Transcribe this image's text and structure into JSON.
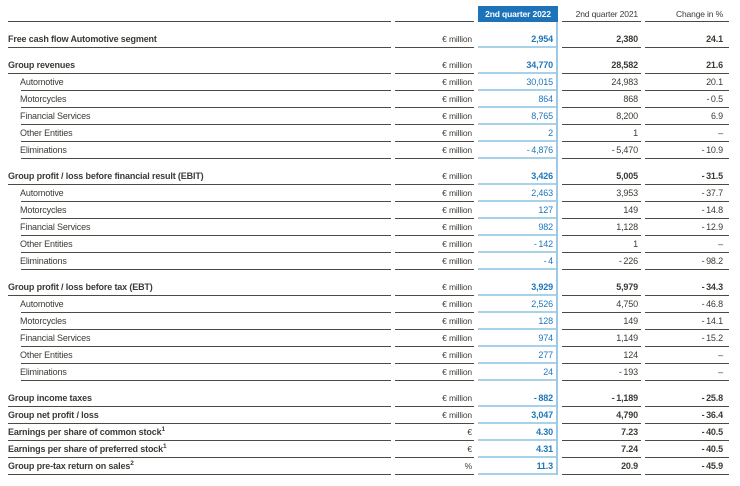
{
  "document": {
    "type": "quarterly-report-table"
  },
  "colors": {
    "header_box_bg": "#1d73b9",
    "header_box_text": "#ffffff",
    "value_2022_text": "#2077bb",
    "column_2022_underline": "#a8d1ea",
    "column_2022_divider": "#9ccae6",
    "row_rule": "#4b4b46",
    "body_text": "#3a3a36"
  },
  "table": {
    "columns": {
      "q2_2022": "2nd quarter 2022",
      "q2_2021": "2nd quarter 2021",
      "change": "Change in %"
    },
    "sections": [
      {
        "rows": [
          {
            "label": "Free cash flow Automotive segment",
            "bold": true,
            "unit": "€ million",
            "q2022": "2,954",
            "q2021": "2,380",
            "change": "24.1"
          }
        ]
      },
      {
        "rows": [
          {
            "label": "Group revenues",
            "bold": true,
            "unit": "€ million",
            "q2022": "34,770",
            "q2021": "28,582",
            "change": "21.6"
          },
          {
            "label": "Automotive",
            "indent": true,
            "unit": "€ million",
            "q2022": "30,015",
            "q2021": "24,983",
            "change": "20.1"
          },
          {
            "label": "Motorcycles",
            "indent": true,
            "unit": "€ million",
            "q2022": "864",
            "q2021": "868",
            "change": "- 0.5"
          },
          {
            "label": "Financial Services",
            "indent": true,
            "unit": "€ million",
            "q2022": "8,765",
            "q2021": "8,200",
            "change": "6.9"
          },
          {
            "label": "Other Entities",
            "indent": true,
            "unit": "€ million",
            "q2022": "2",
            "q2021": "1",
            "change": "–"
          },
          {
            "label": "Eliminations",
            "indent": true,
            "unit": "€ million",
            "q2022": "- 4,876",
            "q2021": "- 5,470",
            "change": "- 10.9"
          }
        ]
      },
      {
        "rows": [
          {
            "label": "Group profit / loss before financial result (EBIT)",
            "bold": true,
            "unit": "€ million",
            "q2022": "3,426",
            "q2021": "5,005",
            "change": "- 31.5"
          },
          {
            "label": "Automotive",
            "indent": true,
            "unit": "€ million",
            "q2022": "2,463",
            "q2021": "3,953",
            "change": "- 37.7"
          },
          {
            "label": "Motorcycles",
            "indent": true,
            "unit": "€ million",
            "q2022": "127",
            "q2021": "149",
            "change": "- 14.8"
          },
          {
            "label": "Financial Services",
            "indent": true,
            "unit": "€ million",
            "q2022": "982",
            "q2021": "1,128",
            "change": "- 12.9"
          },
          {
            "label": "Other Entities",
            "indent": true,
            "unit": "€ million",
            "q2022": "- 142",
            "q2021": "1",
            "change": "–"
          },
          {
            "label": "Eliminations",
            "indent": true,
            "unit": "€ million",
            "q2022": "- 4",
            "q2021": "- 226",
            "change": "- 98.2"
          }
        ]
      },
      {
        "rows": [
          {
            "label": "Group profit / loss before tax (EBT)",
            "bold": true,
            "unit": "€ million",
            "q2022": "3,929",
            "q2021": "5,979",
            "change": "- 34.3"
          },
          {
            "label": "Automotive",
            "indent": true,
            "unit": "€ million",
            "q2022": "2,526",
            "q2021": "4,750",
            "change": "- 46.8"
          },
          {
            "label": "Motorcycles",
            "indent": true,
            "unit": "€ million",
            "q2022": "128",
            "q2021": "149",
            "change": "- 14.1"
          },
          {
            "label": "Financial Services",
            "indent": true,
            "unit": "€ million",
            "q2022": "974",
            "q2021": "1,149",
            "change": "- 15.2"
          },
          {
            "label": "Other Entities",
            "indent": true,
            "unit": "€ million",
            "q2022": "277",
            "q2021": "124",
            "change": "–"
          },
          {
            "label": "Eliminations",
            "indent": true,
            "unit": "€ million",
            "q2022": "24",
            "q2021": "- 193",
            "change": "–"
          }
        ]
      },
      {
        "rows": [
          {
            "label": "Group income taxes",
            "bold": true,
            "unit": "€ million",
            "q2022": "- 882",
            "q2021": "- 1,189",
            "change": "- 25.8"
          },
          {
            "label": "Group net profit / loss",
            "bold": true,
            "unit": "€ million",
            "q2022": "3,047",
            "q2021": "4,790",
            "change": "- 36.4"
          },
          {
            "label": "Earnings per share of common stock",
            "sup": "1",
            "bold": true,
            "unit": "€",
            "q2022": "4.30",
            "q2021": "7.23",
            "change": "- 40.5"
          },
          {
            "label": "Earnings per share of preferred stock",
            "sup": "1",
            "bold": true,
            "unit": "€",
            "q2022": "4.31",
            "q2021": "7.24",
            "change": "- 40.5"
          },
          {
            "label": "Group pre-tax return on sales",
            "sup": "2",
            "bold": true,
            "unit": "%",
            "q2022": "11.3",
            "q2021": "20.9",
            "change": "- 45.9"
          }
        ]
      }
    ]
  }
}
